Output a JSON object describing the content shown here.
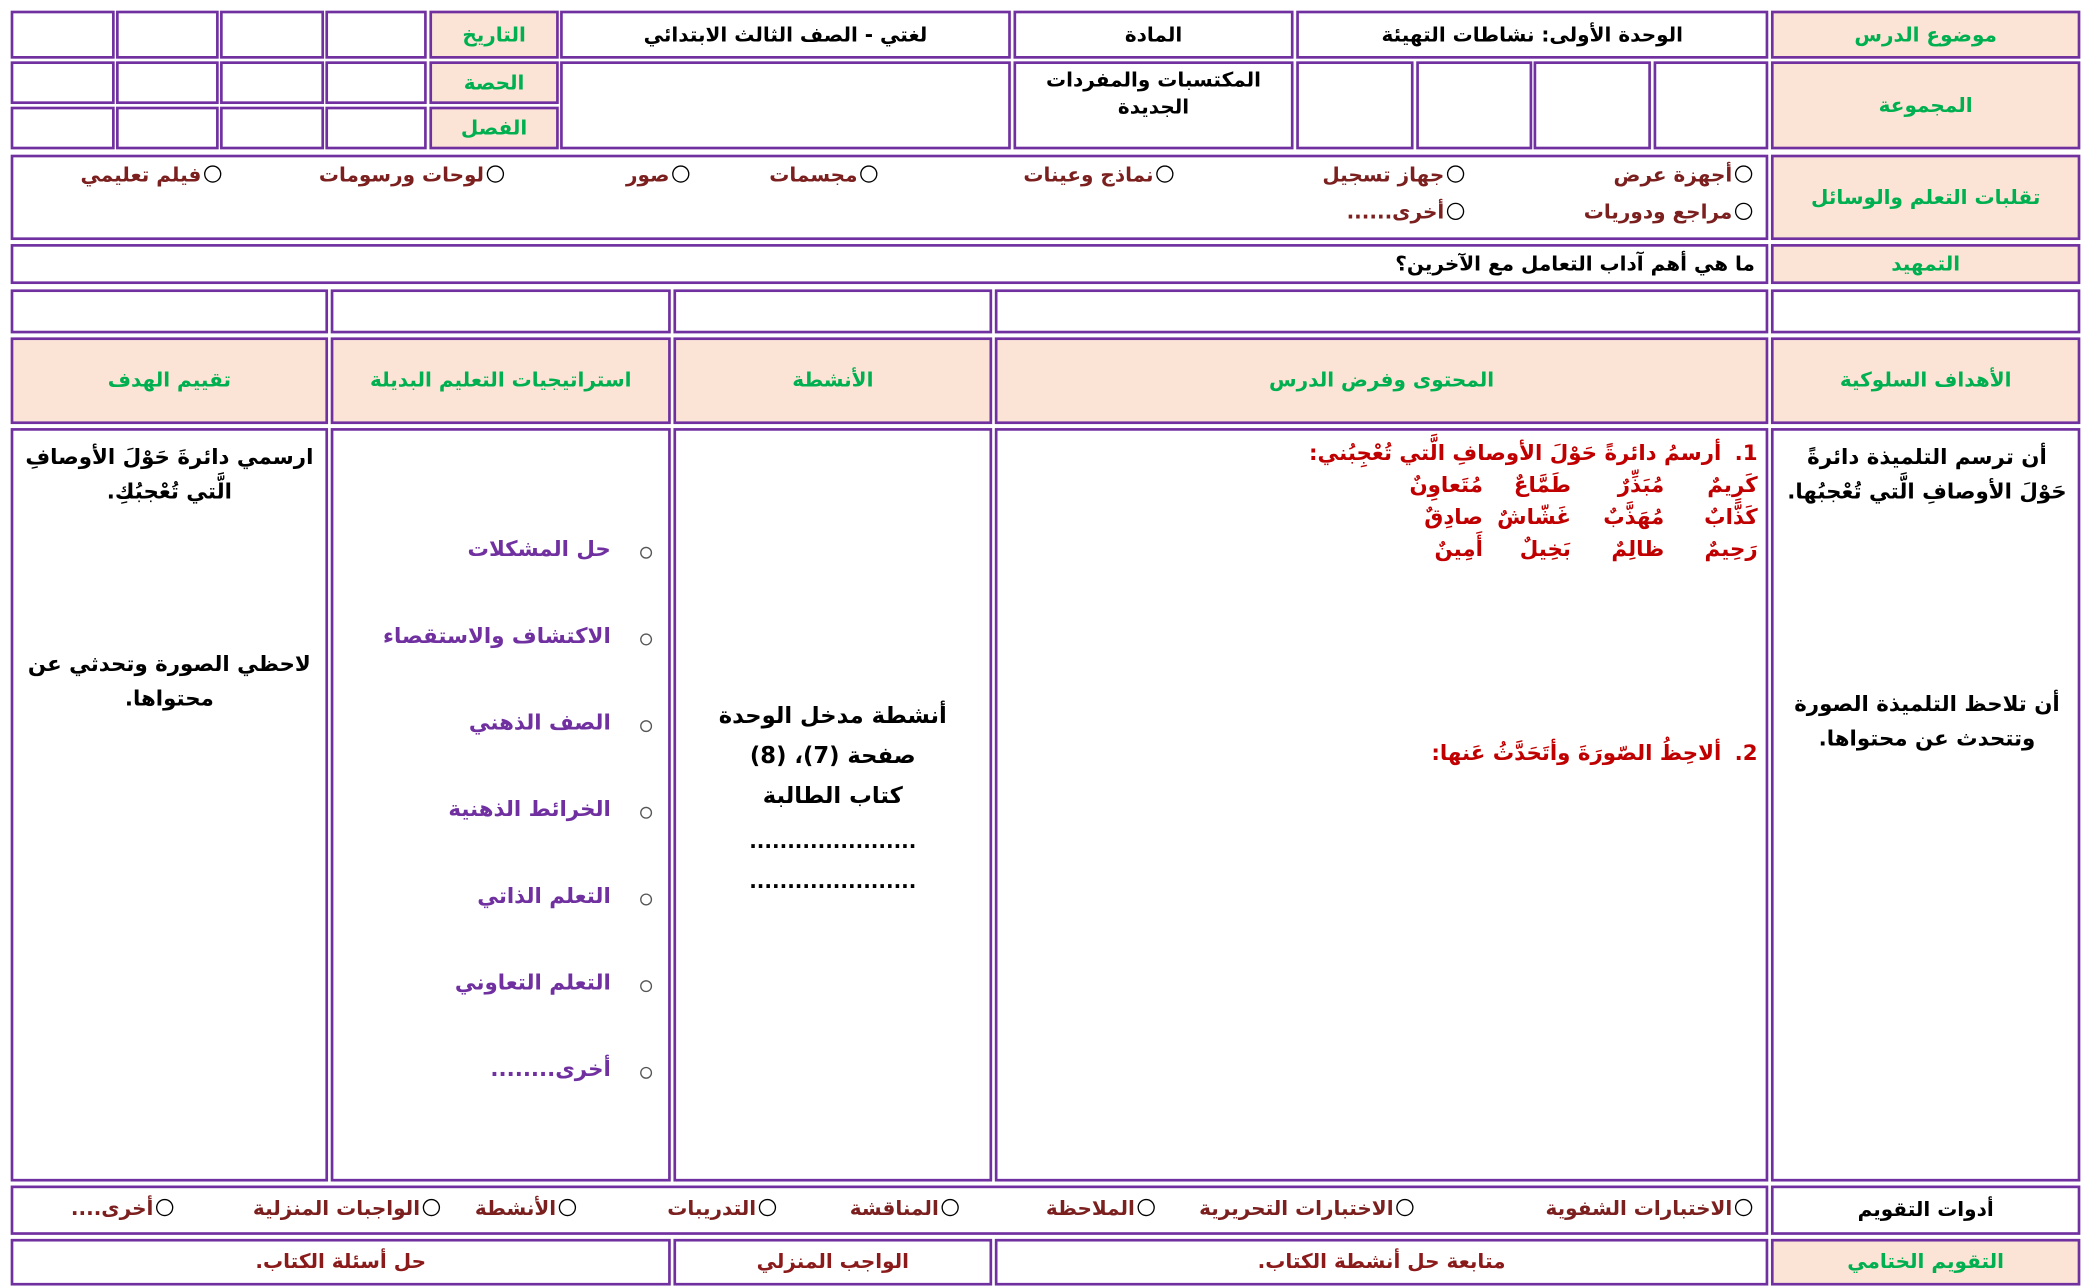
{
  "header": {
    "lesson_topic_label": "موضوع الدرس",
    "lesson_topic": "الوحدة الأولى: نشاطات التهيئة",
    "subject_label": "المادة",
    "subject": "لغتي - الصف الثالث الابتدائي",
    "date_label": "التاريخ",
    "period_label": "الحصة",
    "class_label": "الفصل",
    "group_label": "المجموعة",
    "vocab_label": "المكتسبات والمفردات الجديدة"
  },
  "resources": {
    "label": "تقلبات التعلم والوسائل",
    "options": [
      "أجهزة عرض",
      "جهاز تسجيل",
      "نماذج وعينات",
      "مجسمات",
      "صور",
      "لوحات ورسومات",
      "فيلم تعليمي",
      "مراجع ودوريات",
      "أخرى......"
    ]
  },
  "intro": {
    "label": "التمهيد",
    "question": "ما هي أهم آداب التعامل مع الآخرين؟"
  },
  "columns": [
    "الأهداف السلوكية",
    "المحتوى وفرض الدرس",
    "الأنشطة",
    "استراتيجيات التعليم البديلة",
    "تقييم الهدف"
  ],
  "objectives": [
    "أن ترسم التلميذة دائرةً حَوْلَ الأوصافِ الَّتي تُعْجبُها.",
    "أن تلاحظ التلميذة الصورة وتتحدث عن محتواها."
  ],
  "content": {
    "items": [
      {
        "number": "1.",
        "text": "أرسمُ دائرةً حَوْلَ الأوصافِ الَّتي تُعْجِبُني:"
      },
      {
        "number": "2.",
        "text": "ألاحِظُ الصّورَةَ وأتَحَدَّثُ عَنها:"
      }
    ],
    "words": [
      [
        "كَرِيمٌ",
        "مُبَذِّرٌ",
        "طَمَّاعٌ",
        "مُتَعاوِنٌ"
      ],
      [
        "كَذَّابٌ",
        "مُهَذَّبٌ",
        "غَشّاشٌ",
        "صادِقٌ"
      ],
      [
        "رَحِيمٌ",
        "ظالِمٌ",
        "بَخِيلٌ",
        "أَمِينٌ"
      ]
    ]
  },
  "activities": {
    "lines": [
      "أنشطة مدخل الوحدة",
      "صفحة (7)، (8)",
      "كتاب الطالبة"
    ],
    "dots": [
      "......................",
      "......................"
    ]
  },
  "strategies": [
    "حل المشكلات",
    "الاكتشاف والاستقصاء",
    "الصف الذهني",
    "الخرائط الذهنية",
    "التعلم الذاتي",
    "التعلم التعاوني",
    "أخرى........"
  ],
  "assessment": [
    "ارسمي دائرةَ حَوْلَ الأوصافِ الَّتي تُعْجبُكِ.",
    "لاحظي الصورة وتحدثي عن محتواها."
  ],
  "evaluation_tools": {
    "label": "أدوات التقويم",
    "options": [
      "الاختبارات الشفوية",
      "الاختبارات التحريرية",
      "الملاحظة",
      "المناقشة",
      "التدريبات",
      "الأنشطة",
      "الواجبات المنزلية",
      "أخرى...."
    ]
  },
  "final": {
    "label": "التقويم الختامي",
    "content": "متابعة حل أنشطة الكتاب.",
    "homework_label": "الواجب المنزلي",
    "homework": "حل أسئلة الكتاب."
  }
}
